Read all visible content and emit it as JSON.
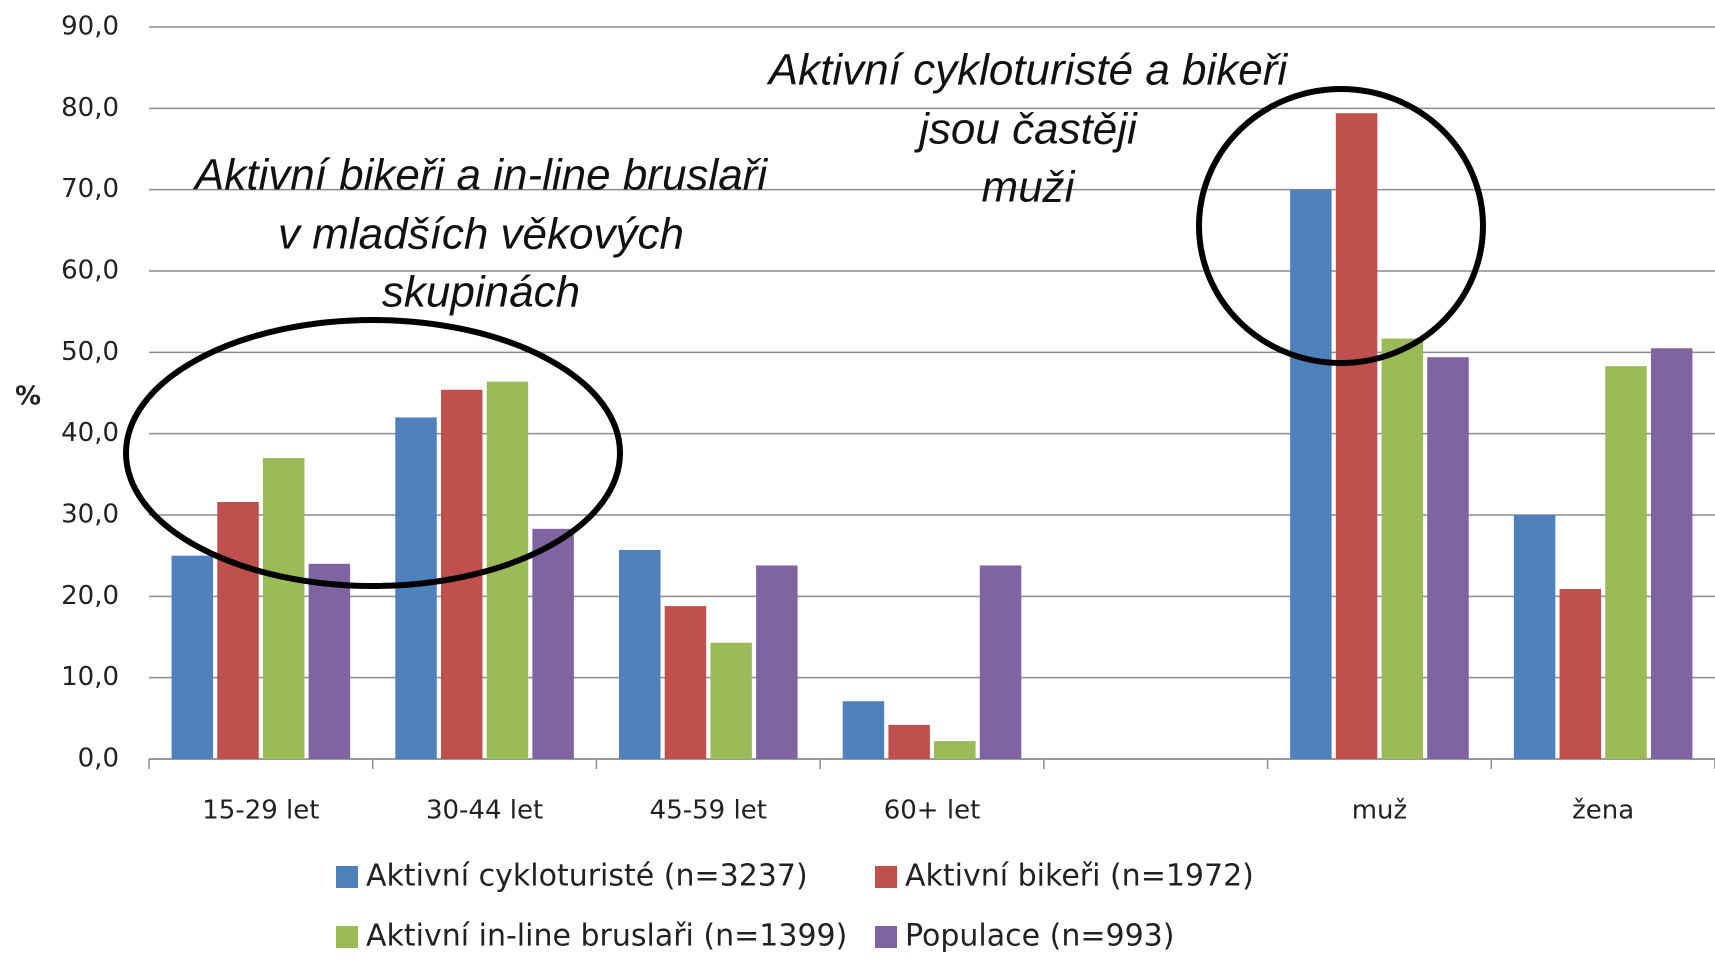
{
  "chart_data": {
    "type": "bar",
    "y_label": "%",
    "categories": [
      "15-29 let",
      "30-44 let",
      "45-59 let",
      "60+ let",
      null,
      "muž",
      "žena"
    ],
    "series": [
      {
        "name": "Aktivní cykloturisté (n=3237)",
        "color": "#4f81bd",
        "values": [
          25.0,
          42.0,
          25.7,
          7.1,
          null,
          70.0,
          30.0
        ]
      },
      {
        "name": "Aktivní bikeři (n=1972)",
        "color": "#c0504d",
        "values": [
          31.6,
          45.4,
          18.8,
          4.2,
          null,
          79.4,
          20.9
        ]
      },
      {
        "name": "Aktivní in-line bruslaři (n=1399)",
        "color": "#9bbb59",
        "values": [
          37.0,
          46.4,
          14.3,
          2.2,
          null,
          51.7,
          48.3
        ]
      },
      {
        "name": "Populace (n=993)",
        "color": "#8064a2",
        "values": [
          24.0,
          28.3,
          23.8,
          23.8,
          null,
          49.4,
          50.5
        ]
      }
    ],
    "ylim": [
      0,
      90
    ],
    "yticks": [
      {
        "value": 0,
        "label": "0,0"
      },
      {
        "value": 10,
        "label": "10,0"
      },
      {
        "value": 20,
        "label": "20,0"
      },
      {
        "value": 30,
        "label": "30,0"
      },
      {
        "value": 40,
        "label": "40,0"
      },
      {
        "value": 50,
        "label": "50,0"
      },
      {
        "value": 60,
        "label": "60,0"
      },
      {
        "value": 70,
        "label": "70,0"
      },
      {
        "value": 80,
        "label": "80,0"
      },
      {
        "value": 90,
        "label": "90,0"
      }
    ],
    "grid": true,
    "annotations": [
      [
        "Aktivní bikeři a in-line bruslaři",
        "v mladších věkových",
        "skupinách"
      ],
      [
        "Aktivní cykloturisté a bikeři",
        "jsou častěji",
        "muži"
      ]
    ]
  }
}
